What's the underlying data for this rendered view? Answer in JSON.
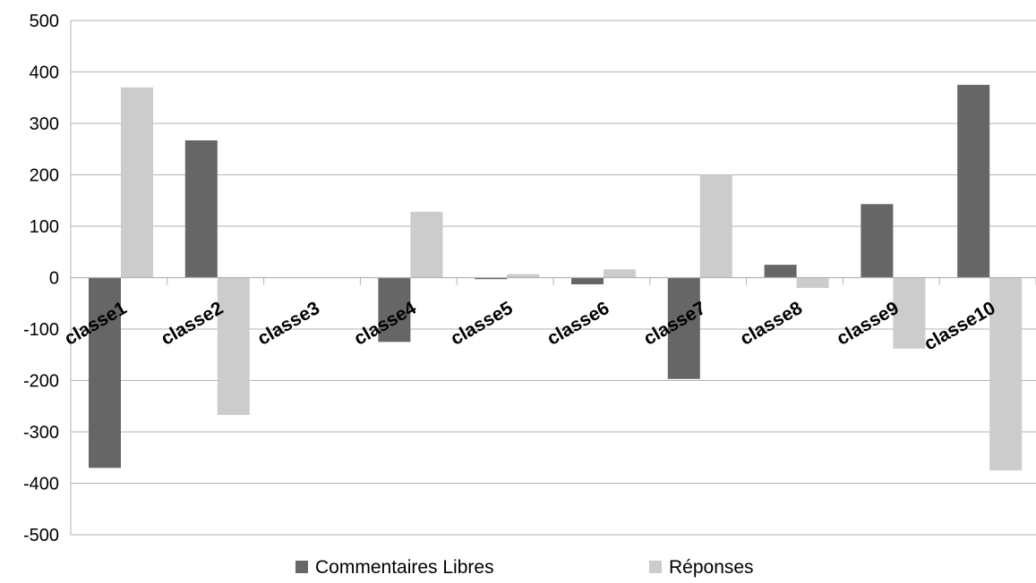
{
  "chart_data": {
    "type": "bar",
    "categories": [
      "classe1",
      "classe2",
      "classe3",
      "classe4",
      "classe5",
      "classe6",
      "classe7",
      "classe8",
      "classe9",
      "classe10"
    ],
    "series": [
      {
        "name": "Commentaires Libres",
        "color": "#666666",
        "values": [
          -370,
          267,
          0,
          -125,
          -3,
          -13,
          -197,
          25,
          143,
          375
        ]
      },
      {
        "name": "Réponses",
        "color": "#cccccc",
        "values": [
          370,
          -267,
          0,
          128,
          7,
          16,
          200,
          -20,
          -138,
          -375
        ]
      }
    ],
    "ylim": [
      -500,
      500
    ],
    "yticks": [
      500,
      400,
      300,
      200,
      100,
      0,
      -100,
      -200,
      -300,
      -400,
      -500
    ],
    "grid": true,
    "legend": "bottom",
    "title": "",
    "xlabel": "",
    "ylabel": ""
  }
}
